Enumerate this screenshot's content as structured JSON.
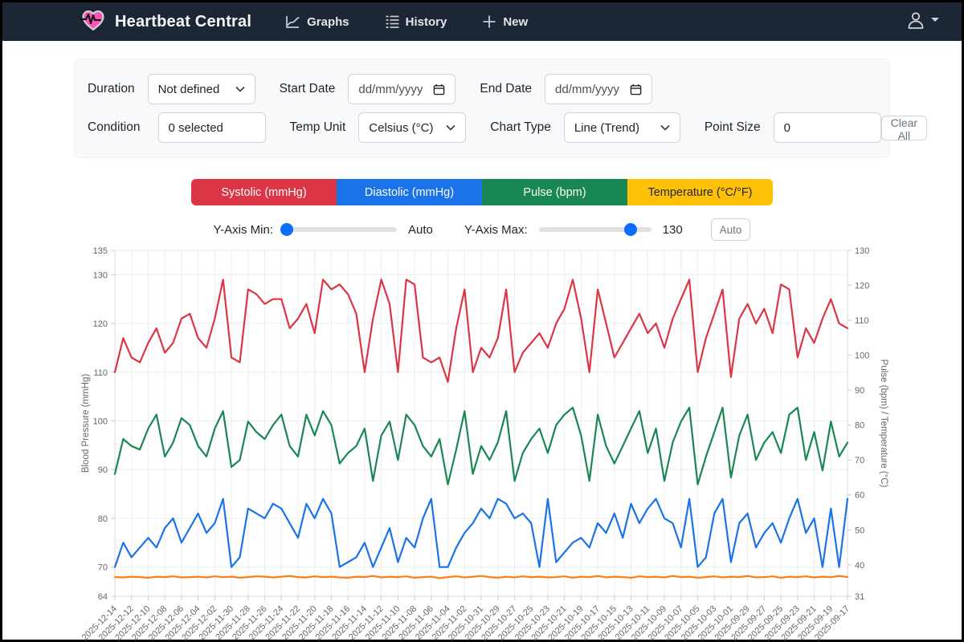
{
  "colors": {
    "navbar_bg": "#1d2634",
    "accent_blue": "#0d6efd",
    "card_bg": "#f8f9fa",
    "grid_line": "#e9e9e9",
    "axis_text": "#666666",
    "brand_heart_pink": "#ff54b8"
  },
  "navbar": {
    "brand": "Heartbeat Central",
    "items": [
      {
        "label": "Graphs",
        "icon": "line-chart-icon"
      },
      {
        "label": "History",
        "icon": "list-icon"
      },
      {
        "label": "New",
        "icon": "plus-icon"
      }
    ],
    "user_icon": "user-icon"
  },
  "filters": {
    "duration_label": "Duration",
    "duration_value": "Not defined",
    "start_date_label": "Start Date",
    "start_date_placeholder": "dd/mm/yyyy",
    "end_date_label": "End Date",
    "end_date_placeholder": "dd/mm/yyyy",
    "condition_label": "Condition",
    "condition_value": "0 selected",
    "temp_unit_label": "Temp Unit",
    "temp_unit_value": "Celsius (°C)",
    "chart_type_label": "Chart Type",
    "chart_type_value": "Line (Trend)",
    "point_size_label": "Point Size",
    "point_size_value": "0",
    "clear_all_label": "Clear All"
  },
  "legend": {
    "buttons": [
      {
        "label": "Systolic (mmHg)",
        "color": "#dc3545",
        "text_color": "#ffffff"
      },
      {
        "label": "Diastolic (mmHg)",
        "color": "#1a73e8",
        "text_color": "#ffffff"
      },
      {
        "label": "Pulse (bpm)",
        "color": "#198754",
        "text_color": "#ffffff"
      },
      {
        "label": "Temperature (°C/°F)",
        "color": "#ffc107",
        "text_color": "#212529"
      }
    ]
  },
  "y_axis_controls": {
    "min_label": "Y-Axis Min:",
    "min_value": "Auto",
    "min_slider_percent": 2,
    "max_label": "Y-Axis Max:",
    "max_value": "130",
    "max_slider_percent": 82,
    "auto_button_label": "Auto"
  },
  "chart_data": {
    "type": "line",
    "grid": true,
    "point_markers": false,
    "points_per_label": 2,
    "left_axis": {
      "title": "Blood Pressure (mmHg)",
      "min": 64,
      "max": 135,
      "ticks": [
        135,
        130,
        120,
        110,
        100,
        90,
        80,
        70,
        64
      ]
    },
    "right_axis": {
      "title": "Pulse (bpm) / Temperature (°C)",
      "min": 31,
      "max": 130,
      "ticks": [
        130,
        120,
        110,
        100,
        90,
        80,
        70,
        60,
        50,
        40,
        31
      ]
    },
    "x_labels": [
      "2025-12-14",
      "2025-12-12",
      "2025-12-10",
      "2025-12-08",
      "2025-12-06",
      "2025-12-04",
      "2025-12-02",
      "2025-11-30",
      "2025-11-28",
      "2025-11-26",
      "2025-11-24",
      "2025-11-22",
      "2025-11-20",
      "2025-11-18",
      "2025-11-16",
      "2025-11-14",
      "2025-11-12",
      "2025-11-10",
      "2025-11-08",
      "2025-11-06",
      "2025-11-04",
      "2025-11-02",
      "2025-10-31",
      "2025-10-29",
      "2025-10-27",
      "2025-10-25",
      "2025-10-23",
      "2025-10-21",
      "2025-10-19",
      "2025-10-17",
      "2025-10-15",
      "2025-10-13",
      "2025-10-11",
      "2025-10-09",
      "2025-10-07",
      "2025-10-05",
      "2025-10-03",
      "2025-10-01",
      "2025-09-29",
      "2025-09-27",
      "2025-09-25",
      "2025-09-23",
      "2025-09-21",
      "2025-09-19",
      "2025-09-17"
    ],
    "series": [
      {
        "name": "Systolic (mmHg)",
        "color": "#dc3545",
        "axis": "left",
        "values": [
          110,
          117,
          113,
          112,
          116,
          119,
          114,
          116,
          121,
          122,
          117,
          115,
          121,
          129,
          113,
          112,
          127,
          126,
          124,
          125,
          125,
          119,
          121,
          124,
          118,
          129,
          127,
          128,
          126,
          122,
          110,
          121,
          129,
          124,
          110,
          129,
          128,
          113,
          112,
          113,
          108,
          119,
          127,
          110,
          115,
          113,
          117,
          127,
          110,
          114,
          116,
          118,
          115,
          120,
          123,
          129,
          121,
          110,
          127,
          120,
          113,
          116,
          119,
          122,
          118,
          120,
          115,
          121,
          125,
          129,
          110,
          117,
          122,
          127,
          109,
          121,
          124,
          120,
          123,
          118,
          128,
          127,
          113,
          119,
          116,
          121,
          125,
          120,
          119
        ]
      },
      {
        "name": "Diastolic (mmHg)",
        "color": "#1a73e8",
        "axis": "left",
        "values": [
          70,
          75,
          72,
          74,
          76,
          74,
          78,
          80,
          75,
          78,
          81,
          77,
          79,
          84,
          70,
          72,
          82,
          81,
          80,
          83,
          82,
          79,
          76,
          83,
          80,
          84,
          81,
          70,
          71,
          72,
          75,
          70,
          74,
          78,
          71,
          76,
          74,
          80,
          84,
          70,
          70,
          74,
          77,
          79,
          82,
          80,
          84,
          83,
          80,
          81,
          79,
          70,
          84,
          71,
          73,
          75,
          76,
          74,
          79,
          77,
          81,
          76,
          83,
          79,
          82,
          84,
          80,
          79,
          74,
          84,
          70,
          72,
          81,
          84,
          71,
          79,
          81,
          74,
          77,
          79,
          75,
          80,
          84,
          77,
          80,
          70,
          82,
          70,
          84
        ]
      },
      {
        "name": "Pulse (bpm)",
        "color": "#198754",
        "axis": "right",
        "values": [
          66,
          76,
          74,
          73,
          79,
          83,
          71,
          75,
          82,
          80,
          74,
          71,
          79,
          84,
          68,
          70,
          81,
          78,
          76,
          80,
          83,
          74,
          71,
          83,
          77,
          84,
          80,
          69,
          72,
          74,
          79,
          64,
          77,
          81,
          70,
          83,
          80,
          74,
          71,
          76,
          63,
          73,
          84,
          66,
          74,
          70,
          75,
          84,
          64,
          72,
          76,
          79,
          72,
          80,
          83,
          85,
          77,
          64,
          83,
          74,
          69,
          74,
          79,
          84,
          72,
          79,
          64,
          75,
          81,
          85,
          63,
          71,
          78,
          85,
          65,
          77,
          83,
          70,
          75,
          78,
          72,
          83,
          85,
          70,
          78,
          67,
          81,
          71,
          75
        ]
      },
      {
        "name": "Temperature (°C)",
        "color": "#fd7e14",
        "axis": "right",
        "values": [
          36.5,
          36.4,
          36.6,
          36.5,
          36.3,
          36.6,
          36.5,
          36.7,
          36.4,
          36.5,
          36.6,
          36.4,
          36.7,
          36.5,
          36.6,
          36.3,
          36.5,
          36.7,
          36.6,
          36.4,
          36.6,
          36.8,
          36.5,
          36.4,
          36.7,
          36.5,
          36.6,
          36.4,
          36.3,
          36.6,
          36.5,
          36.8,
          36.4,
          36.6,
          36.5,
          36.7,
          36.3,
          36.5,
          36.6,
          36.2,
          36.5,
          36.7,
          36.4,
          36.6,
          36.8,
          36.5,
          36.3,
          36.6,
          36.4,
          36.7,
          36.5,
          36.6,
          36.4,
          36.5,
          36.7,
          36.3,
          36.6,
          36.5,
          36.8,
          36.4,
          36.6,
          36.5,
          36.3,
          36.7,
          36.5,
          36.6,
          36.4,
          36.8,
          36.5,
          36.6,
          36.3,
          36.5,
          36.7,
          36.4,
          36.6,
          36.5,
          36.8,
          36.4,
          36.5,
          36.7,
          36.3,
          36.6,
          36.5,
          36.7,
          36.4,
          36.6,
          36.5,
          36.8,
          36.5
        ]
      }
    ]
  }
}
